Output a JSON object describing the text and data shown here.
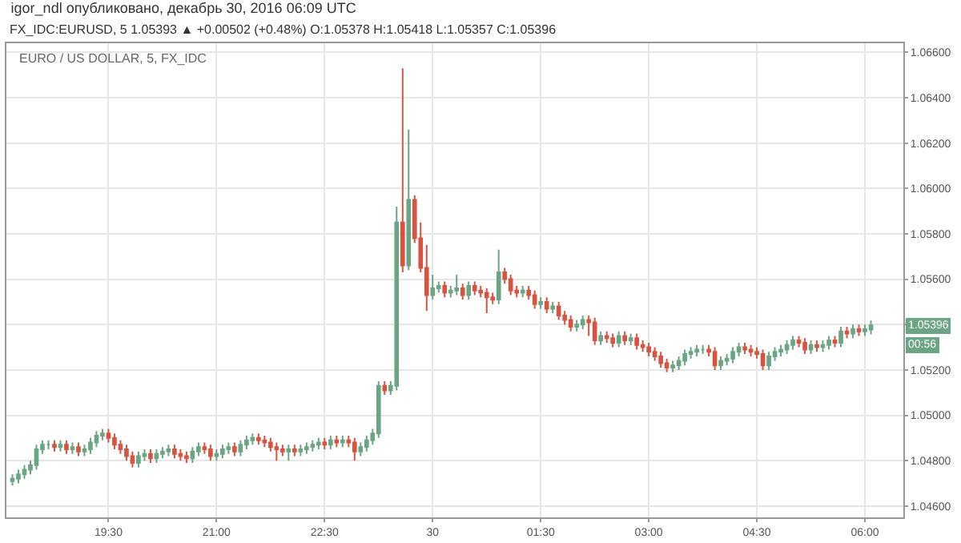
{
  "chart_data": {
    "type": "candlestick",
    "title": "igor_ndl опубликовано, декабрь 30, 2016 06:09 UTC",
    "subtitle": "FX_IDC:EURUSD, 5 1.05393 ▲ +0.00502 (+0.48%) O:1.05378 H:1.05418 L:1.05357 C:1.05396",
    "annotations": [
      "EURO / US DOLLAR, 5, FX_IDC",
      {
        "text": "1.05396",
        "y": 1.05396
      },
      "00:56"
    ],
    "x": [
      "2016-12-29T18:10",
      "2016-12-29T18:15",
      "2016-12-29T18:20",
      "2016-12-29T18:25",
      "2016-12-29T18:30",
      "2016-12-29T18:35",
      "2016-12-29T18:40",
      "2016-12-29T18:45",
      "2016-12-29T18:50",
      "2016-12-29T18:55",
      "2016-12-29T19:00",
      "2016-12-29T19:05",
      "2016-12-29T19:10",
      "2016-12-29T19:15",
      "2016-12-29T19:20",
      "2016-12-29T19:25",
      "2016-12-29T19:30",
      "2016-12-29T19:35",
      "2016-12-29T19:40",
      "2016-12-29T19:45",
      "2016-12-29T19:50",
      "2016-12-29T19:55",
      "2016-12-29T20:00",
      "2016-12-29T20:05",
      "2016-12-29T20:10",
      "2016-12-29T20:15",
      "2016-12-29T20:20",
      "2016-12-29T20:25",
      "2016-12-29T20:30",
      "2016-12-29T20:35",
      "2016-12-29T20:40",
      "2016-12-29T20:45",
      "2016-12-29T20:50",
      "2016-12-29T20:55",
      "2016-12-29T21:00",
      "2016-12-29T21:05",
      "2016-12-29T21:10",
      "2016-12-29T21:15",
      "2016-12-29T21:20",
      "2016-12-29T21:25",
      "2016-12-29T21:30",
      "2016-12-29T21:35",
      "2016-12-29T21:40",
      "2016-12-29T21:45",
      "2016-12-29T21:50",
      "2016-12-29T21:55",
      "2016-12-29T22:00",
      "2016-12-29T22:05",
      "2016-12-29T22:10",
      "2016-12-29T22:15",
      "2016-12-29T22:20",
      "2016-12-29T22:25",
      "2016-12-29T22:30",
      "2016-12-29T22:35",
      "2016-12-29T22:40",
      "2016-12-29T22:45",
      "2016-12-29T22:50",
      "2016-12-29T22:55",
      "2016-12-29T23:00",
      "2016-12-29T23:05",
      "2016-12-29T23:10",
      "2016-12-29T23:15",
      "2016-12-29T23:20",
      "2016-12-29T23:25",
      "2016-12-29T23:30",
      "2016-12-29T23:35",
      "2016-12-29T23:40",
      "2016-12-29T23:45",
      "2016-12-29T23:50",
      "2016-12-29T23:55",
      "2016-12-30T00:00",
      "2016-12-30T00:05",
      "2016-12-30T00:10",
      "2016-12-30T00:15",
      "2016-12-30T00:20",
      "2016-12-30T00:25",
      "2016-12-30T00:30",
      "2016-12-30T00:35",
      "2016-12-30T00:40",
      "2016-12-30T00:45",
      "2016-12-30T00:50",
      "2016-12-30T00:55",
      "2016-12-30T01:00",
      "2016-12-30T01:05",
      "2016-12-30T01:10",
      "2016-12-30T01:15",
      "2016-12-30T01:20",
      "2016-12-30T01:25",
      "2016-12-30T01:30",
      "2016-12-30T01:35",
      "2016-12-30T01:40",
      "2016-12-30T01:45",
      "2016-12-30T01:50",
      "2016-12-30T01:55",
      "2016-12-30T02:00",
      "2016-12-30T02:05",
      "2016-12-30T02:10",
      "2016-12-30T02:15",
      "2016-12-30T02:20",
      "2016-12-30T02:25",
      "2016-12-30T02:30",
      "2016-12-30T02:35",
      "2016-12-30T02:40",
      "2016-12-30T02:45",
      "2016-12-30T02:50",
      "2016-12-30T02:55",
      "2016-12-30T03:00",
      "2016-12-30T03:05",
      "2016-12-30T03:10",
      "2016-12-30T03:15",
      "2016-12-30T03:20",
      "2016-12-30T03:25",
      "2016-12-30T03:30",
      "2016-12-30T03:35",
      "2016-12-30T03:40",
      "2016-12-30T03:45",
      "2016-12-30T03:50",
      "2016-12-30T03:55",
      "2016-12-30T04:00",
      "2016-12-30T04:05",
      "2016-12-30T04:10",
      "2016-12-30T04:15",
      "2016-12-30T04:20",
      "2016-12-30T04:25",
      "2016-12-30T04:30",
      "2016-12-30T04:35",
      "2016-12-30T04:40",
      "2016-12-30T04:45",
      "2016-12-30T04:50",
      "2016-12-30T04:55",
      "2016-12-30T05:00",
      "2016-12-30T05:05",
      "2016-12-30T05:10",
      "2016-12-30T05:15",
      "2016-12-30T05:20",
      "2016-12-30T05:25",
      "2016-12-30T05:30",
      "2016-12-30T05:35",
      "2016-12-30T05:40",
      "2016-12-30T05:45",
      "2016-12-30T05:50",
      "2016-12-30T05:55",
      "2016-12-30T06:00",
      "2016-12-30T06:05"
    ],
    "ohlc": [
      [
        1.0471,
        1.0474,
        1.0469,
        1.0472
      ],
      [
        1.0472,
        1.0476,
        1.047,
        1.0474
      ],
      [
        1.0474,
        1.0478,
        1.0472,
        1.0476
      ],
      [
        1.0476,
        1.048,
        1.0474,
        1.0478
      ],
      [
        1.0478,
        1.0487,
        1.0476,
        1.0485
      ],
      [
        1.0485,
        1.0489,
        1.0483,
        1.0487
      ],
      [
        1.0487,
        1.0489,
        1.0485,
        1.0487
      ],
      [
        1.0487,
        1.0489,
        1.0484,
        1.0486
      ],
      [
        1.0486,
        1.0489,
        1.0484,
        1.0487
      ],
      [
        1.0487,
        1.0489,
        1.0483,
        1.0485
      ],
      [
        1.0485,
        1.0488,
        1.0483,
        1.0486
      ],
      [
        1.0486,
        1.0488,
        1.0482,
        1.0484
      ],
      [
        1.0484,
        1.0487,
        1.0482,
        1.0485
      ],
      [
        1.0485,
        1.049,
        1.0483,
        1.0488
      ],
      [
        1.0488,
        1.0493,
        1.0486,
        1.0491
      ],
      [
        1.0491,
        1.0494,
        1.0489,
        1.0492
      ],
      [
        1.0492,
        1.0494,
        1.0488,
        1.049
      ],
      [
        1.049,
        1.0492,
        1.0485,
        1.0487
      ],
      [
        1.0487,
        1.0489,
        1.0483,
        1.0485
      ],
      [
        1.0485,
        1.0487,
        1.048,
        1.0482
      ],
      [
        1.0482,
        1.0484,
        1.0477,
        1.0479
      ],
      [
        1.0479,
        1.0484,
        1.0477,
        1.0482
      ],
      [
        1.0482,
        1.0485,
        1.048,
        1.0483
      ],
      [
        1.0483,
        1.0485,
        1.0479,
        1.0481
      ],
      [
        1.0481,
        1.0485,
        1.0479,
        1.0483
      ],
      [
        1.0483,
        1.0486,
        1.0481,
        1.0484
      ],
      [
        1.0484,
        1.0487,
        1.0482,
        1.0485
      ],
      [
        1.0485,
        1.0487,
        1.0481,
        1.0483
      ],
      [
        1.0483,
        1.0485,
        1.048,
        1.0482
      ],
      [
        1.0482,
        1.0484,
        1.0479,
        1.0481
      ],
      [
        1.0481,
        1.0486,
        1.0479,
        1.0484
      ],
      [
        1.0484,
        1.0488,
        1.0482,
        1.0486
      ],
      [
        1.0486,
        1.0488,
        1.0483,
        1.0485
      ],
      [
        1.0485,
        1.0487,
        1.048,
        1.0482
      ],
      [
        1.0482,
        1.0485,
        1.048,
        1.0483
      ],
      [
        1.0483,
        1.0487,
        1.0481,
        1.0485
      ],
      [
        1.0485,
        1.0488,
        1.0483,
        1.0486
      ],
      [
        1.0486,
        1.0488,
        1.0482,
        1.0484
      ],
      [
        1.0484,
        1.0489,
        1.0482,
        1.0487
      ],
      [
        1.0487,
        1.0491,
        1.0485,
        1.0489
      ],
      [
        1.0489,
        1.0492,
        1.0487,
        1.049
      ],
      [
        1.049,
        1.0492,
        1.0487,
        1.0489
      ],
      [
        1.0489,
        1.0491,
        1.0486,
        1.0488
      ],
      [
        1.0488,
        1.049,
        1.0484,
        1.0486
      ],
      [
        1.0486,
        1.0488,
        1.048,
        1.0485
      ],
      [
        1.0485,
        1.0487,
        1.0482,
        1.0484
      ],
      [
        1.0484,
        1.0487,
        1.048,
        1.0485
      ],
      [
        1.0485,
        1.0487,
        1.0482,
        1.0484
      ],
      [
        1.0484,
        1.0487,
        1.0482,
        1.0485
      ],
      [
        1.0485,
        1.0488,
        1.0483,
        1.0486
      ],
      [
        1.0486,
        1.0489,
        1.0484,
        1.0487
      ],
      [
        1.0487,
        1.049,
        1.0485,
        1.0488
      ],
      [
        1.0488,
        1.049,
        1.0485,
        1.0487
      ],
      [
        1.0487,
        1.0491,
        1.0485,
        1.0489
      ],
      [
        1.0489,
        1.0491,
        1.0486,
        1.0488
      ],
      [
        1.0488,
        1.0491,
        1.0486,
        1.0489
      ],
      [
        1.0489,
        1.0491,
        1.0486,
        1.0488
      ],
      [
        1.0488,
        1.049,
        1.048,
        1.0484
      ],
      [
        1.0484,
        1.0488,
        1.0482,
        1.0486
      ],
      [
        1.0486,
        1.0491,
        1.0484,
        1.0489
      ],
      [
        1.0489,
        1.0494,
        1.0487,
        1.0492
      ],
      [
        1.0492,
        1.0515,
        1.049,
        1.0513
      ],
      [
        1.0513,
        1.0515,
        1.0509,
        1.0511
      ],
      [
        1.0511,
        1.0515,
        1.0509,
        1.0513
      ],
      [
        1.0513,
        1.0592,
        1.0511,
        1.0585
      ],
      [
        1.0585,
        1.0653,
        1.0563,
        1.0566
      ],
      [
        1.0566,
        1.0626,
        1.0564,
        1.0595
      ],
      [
        1.0595,
        1.0597,
        1.0576,
        1.0578
      ],
      [
        1.0578,
        1.0585,
        1.0563,
        1.0565
      ],
      [
        1.0565,
        1.0575,
        1.0546,
        1.0553
      ],
      [
        1.0553,
        1.0562,
        1.0551,
        1.0556
      ],
      [
        1.0556,
        1.0559,
        1.0554,
        1.0557
      ],
      [
        1.0557,
        1.0559,
        1.0552,
        1.0554
      ],
      [
        1.0554,
        1.0557,
        1.0552,
        1.0555
      ],
      [
        1.0555,
        1.0562,
        1.0553,
        1.0556
      ],
      [
        1.0556,
        1.0558,
        1.0551,
        1.0553
      ],
      [
        1.0553,
        1.0559,
        1.0551,
        1.0557
      ],
      [
        1.0557,
        1.0559,
        1.0553,
        1.0555
      ],
      [
        1.0555,
        1.0557,
        1.0552,
        1.0554
      ],
      [
        1.0554,
        1.0556,
        1.0545,
        1.0552
      ],
      [
        1.0552,
        1.0554,
        1.0549,
        1.0551
      ],
      [
        1.0551,
        1.0573,
        1.0549,
        1.0563
      ],
      [
        1.0563,
        1.0565,
        1.0558,
        1.056
      ],
      [
        1.056,
        1.0562,
        1.0553,
        1.0555
      ],
      [
        1.0555,
        1.0557,
        1.0552,
        1.0554
      ],
      [
        1.0554,
        1.0557,
        1.0552,
        1.0555
      ],
      [
        1.0555,
        1.0557,
        1.0551,
        1.0553
      ],
      [
        1.0553,
        1.0555,
        1.0547,
        1.0549
      ],
      [
        1.0549,
        1.0552,
        1.0547,
        1.055
      ],
      [
        1.055,
        1.0552,
        1.0545,
        1.0547
      ],
      [
        1.0547,
        1.055,
        1.0545,
        1.0548
      ],
      [
        1.0548,
        1.055,
        1.0542,
        1.0544
      ],
      [
        1.0544,
        1.0546,
        1.054,
        1.0542
      ],
      [
        1.0542,
        1.0544,
        1.0537,
        1.0539
      ],
      [
        1.0539,
        1.0542,
        1.0537,
        1.054
      ],
      [
        1.054,
        1.0544,
        1.0538,
        1.0542
      ],
      [
        1.0542,
        1.0544,
        1.0535,
        1.0541
      ],
      [
        1.0541,
        1.0543,
        1.0531,
        1.0533
      ],
      [
        1.0533,
        1.0537,
        1.0531,
        1.0535
      ],
      [
        1.0535,
        1.0537,
        1.0532,
        1.0534
      ],
      [
        1.0534,
        1.0536,
        1.053,
        1.0532
      ],
      [
        1.0532,
        1.0537,
        1.053,
        1.0535
      ],
      [
        1.0535,
        1.0537,
        1.0531,
        1.0533
      ],
      [
        1.0533,
        1.0536,
        1.0531,
        1.0534
      ],
      [
        1.0534,
        1.0536,
        1.0529,
        1.0531
      ],
      [
        1.0531,
        1.0533,
        1.0528,
        1.053
      ],
      [
        1.053,
        1.0532,
        1.0526,
        1.0528
      ],
      [
        1.0528,
        1.053,
        1.0524,
        1.0526
      ],
      [
        1.0526,
        1.0528,
        1.0521,
        1.0523
      ],
      [
        1.0523,
        1.0525,
        1.0519,
        1.0521
      ],
      [
        1.0521,
        1.0524,
        1.0519,
        1.0522
      ],
      [
        1.0522,
        1.0526,
        1.052,
        1.0524
      ],
      [
        1.0524,
        1.0529,
        1.0522,
        1.0527
      ],
      [
        1.0527,
        1.053,
        1.0525,
        1.0528
      ],
      [
        1.0528,
        1.0531,
        1.0526,
        1.0529
      ],
      [
        1.0529,
        1.0531,
        1.0527,
        1.0529
      ],
      [
        1.0529,
        1.0531,
        1.0526,
        1.0528
      ],
      [
        1.0528,
        1.053,
        1.052,
        1.0522
      ],
      [
        1.0522,
        1.0526,
        1.052,
        1.0524
      ],
      [
        1.0524,
        1.0527,
        1.0522,
        1.0525
      ],
      [
        1.0525,
        1.053,
        1.0523,
        1.0528
      ],
      [
        1.0528,
        1.0532,
        1.0526,
        1.053
      ],
      [
        1.053,
        1.0532,
        1.0527,
        1.0529
      ],
      [
        1.0529,
        1.0531,
        1.0526,
        1.0528
      ],
      [
        1.0528,
        1.053,
        1.0525,
        1.0527
      ],
      [
        1.0527,
        1.0529,
        1.052,
        1.0522
      ],
      [
        1.0522,
        1.0528,
        1.052,
        1.0526
      ],
      [
        1.0526,
        1.053,
        1.0524,
        1.0528
      ],
      [
        1.0528,
        1.0531,
        1.0526,
        1.0529
      ],
      [
        1.0529,
        1.0533,
        1.0527,
        1.0531
      ],
      [
        1.0531,
        1.0535,
        1.0529,
        1.0533
      ],
      [
        1.0533,
        1.0535,
        1.053,
        1.0532
      ],
      [
        1.0532,
        1.0534,
        1.0527,
        1.0529
      ],
      [
        1.0529,
        1.0533,
        1.0527,
        1.0531
      ],
      [
        1.0531,
        1.0533,
        1.0528,
        1.053
      ],
      [
        1.053,
        1.0533,
        1.0528,
        1.0531
      ],
      [
        1.0531,
        1.0535,
        1.0529,
        1.0533
      ],
      [
        1.0533,
        1.0535,
        1.053,
        1.0532
      ],
      [
        1.0532,
        1.0539,
        1.053,
        1.0537
      ],
      [
        1.0537,
        1.0539,
        1.0534,
        1.0536
      ],
      [
        1.0536,
        1.054,
        1.0534,
        1.0538
      ],
      [
        1.0538,
        1.054,
        1.0535,
        1.0537
      ],
      [
        1.0537,
        1.054,
        1.0535,
        1.0538
      ],
      [
        1.05378,
        1.05418,
        1.05357,
        1.05396
      ]
    ],
    "xlim": [
      "2016-12-29T18:05",
      "2016-12-30T06:32"
    ],
    "xticks": [
      {
        "value": "2016-12-29T19:30",
        "label": "19:30"
      },
      {
        "value": "2016-12-29T21:00",
        "label": "21:00"
      },
      {
        "value": "2016-12-29T22:30",
        "label": "22:30"
      },
      {
        "value": "2016-12-30T00:00",
        "label": "30"
      },
      {
        "value": "2016-12-30T01:30",
        "label": "01:30"
      },
      {
        "value": "2016-12-30T03:00",
        "label": "03:00"
      },
      {
        "value": "2016-12-30T04:30",
        "label": "04:30"
      },
      {
        "value": "2016-12-30T06:00",
        "label": "06:00"
      }
    ],
    "ylim": [
      1.0455,
      1.0664
    ],
    "yticks": [
      {
        "value": 1.046,
        "label": "1.04600"
      },
      {
        "value": 1.048,
        "label": "1.04800"
      },
      {
        "value": 1.05,
        "label": "1.05000"
      },
      {
        "value": 1.052,
        "label": "1.05200"
      },
      {
        "value": 1.054,
        "label": null
      },
      {
        "value": 1.056,
        "label": "1.05600"
      },
      {
        "value": 1.058,
        "label": "1.05800"
      },
      {
        "value": 1.06,
        "label": "1.06000"
      },
      {
        "value": 1.062,
        "label": "1.06200"
      },
      {
        "value": 1.064,
        "label": "1.06400"
      },
      {
        "value": 1.066,
        "label": "1.06600"
      }
    ],
    "grid": true
  }
}
